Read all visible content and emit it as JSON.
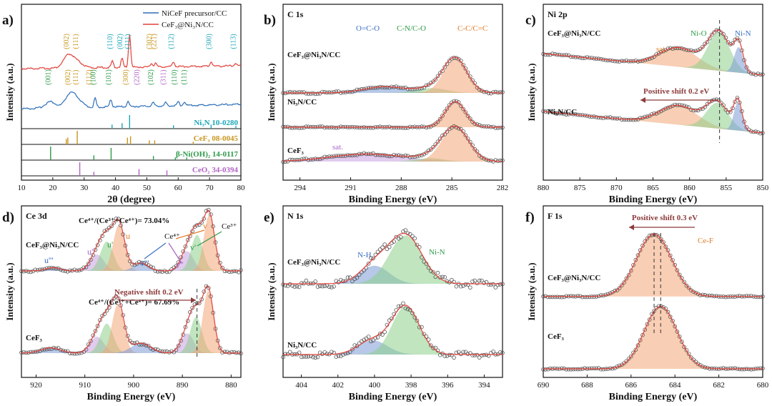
{
  "figure": {
    "colors": {
      "black": "#111111",
      "blue_curve": "#2f6fba",
      "red_curve": "#e0413a"
    }
  },
  "chart_data": [
    {
      "panel": "a)",
      "type": "line",
      "xlabel": "2θ (degree)",
      "ylabel": "Intensity (a.u.)",
      "xlim": [
        10,
        80
      ],
      "xticks": [
        10,
        20,
        30,
        40,
        50,
        60,
        70,
        80
      ],
      "legend": [
        {
          "label": "NiCeF precursor/CC",
          "color": "#2f6fba"
        },
        {
          "label": "CeF₃@Ni₃N/CC",
          "color": "#e0413a"
        }
      ],
      "series": [
        {
          "name": "CeF₃@Ni₃N/CC",
          "color": "#e0413a",
          "peaks": [
            [
              25.0,
              1.0
            ],
            [
              28.0,
              0.4
            ],
            [
              39.0,
              0.5
            ],
            [
              42.1,
              0.7
            ],
            [
              44.5,
              2.6
            ],
            [
              51.5,
              0.3
            ],
            [
              52.8,
              0.3
            ],
            [
              58.5,
              0.4
            ],
            [
              70.5,
              0.35
            ],
            [
              78.3,
              0.2
            ]
          ]
        },
        {
          "name": "NiCeF precursor/CC",
          "color": "#2f6fba",
          "peaks": [
            [
              19.2,
              0.5
            ],
            [
              25.5,
              1.0
            ],
            [
              28.0,
              0.5
            ],
            [
              33.5,
              0.7
            ],
            [
              38.5,
              0.6
            ],
            [
              44.0,
              0.4
            ],
            [
              52.0,
              0.3
            ],
            [
              56.0,
              0.25
            ],
            [
              60.0,
              0.3
            ],
            [
              62.0,
              0.3
            ]
          ]
        }
      ],
      "annotations": [
        {
          "text": "(002)",
          "x": 25.0,
          "color": "#c8961e",
          "row": "red"
        },
        {
          "text": "(111)",
          "x": 28.0,
          "color": "#c8961e",
          "row": "red"
        },
        {
          "text": "(110)",
          "x": 39.0,
          "color": "#1aa6b7",
          "row": "red"
        },
        {
          "text": "(002)",
          "x": 42.1,
          "color": "#1aa6b7",
          "row": "red"
        },
        {
          "text": "(111)",
          "x": 44.5,
          "color": "#1aa6b7",
          "row": "red"
        },
        {
          "text": "(302)",
          "x": 51.5,
          "color": "#c8961e",
          "row": "red"
        },
        {
          "text": "(221)",
          "x": 53.0,
          "color": "#c8961e",
          "row": "red"
        },
        {
          "text": "(112)",
          "x": 58.5,
          "color": "#1aa6b7",
          "row": "red"
        },
        {
          "text": "(300)",
          "x": 70.5,
          "color": "#1aa6b7",
          "row": "red"
        },
        {
          "text": "(113)",
          "x": 78.3,
          "color": "#1aa6b7",
          "row": "red"
        },
        {
          "text": "(001)",
          "x": 19.2,
          "color": "#2e9a49",
          "row": "blue"
        },
        {
          "text": "(002)",
          "x": 25.5,
          "color": "#c8961e",
          "row": "blue"
        },
        {
          "text": "(111)",
          "x": 28.0,
          "color": "#c8961e",
          "row": "blue"
        },
        {
          "text": "(112)",
          "x": 32.2,
          "color": "#c8961e",
          "row": "blue"
        },
        {
          "text": "(100)",
          "x": 33.6,
          "color": "#2e9a49",
          "row": "blue"
        },
        {
          "text": "(101)",
          "x": 38.5,
          "color": "#2e9a49",
          "row": "blue"
        },
        {
          "text": "(300)",
          "x": 44.0,
          "color": "#c8961e",
          "row": "blue"
        },
        {
          "text": "(220)",
          "x": 47.5,
          "color": "#b264c4",
          "row": "blue"
        },
        {
          "text": "(102)",
          "x": 52.0,
          "color": "#2e9a49",
          "row": "blue"
        },
        {
          "text": "(311)",
          "x": 56.0,
          "color": "#b264c4",
          "row": "blue"
        },
        {
          "text": "(110)",
          "x": 59.5,
          "color": "#2e9a49",
          "row": "blue"
        },
        {
          "text": "(111)",
          "x": 62.5,
          "color": "#2e9a49",
          "row": "blue"
        }
      ],
      "references": [
        {
          "label": "Ni₃N 10-0280",
          "color": "#1aa6b7",
          "positions": [
            38.9,
            42.1,
            44.5,
            58.5,
            70.5,
            78.4
          ],
          "heights": [
            0.3,
            0.4,
            1.0,
            0.25,
            0.3,
            0.2
          ]
        },
        {
          "label": "CeF₃ 08-0045",
          "color": "#c8961e",
          "positions": [
            24.3,
            24.8,
            27.8,
            43.8,
            44.8,
            50.8,
            52.5,
            64.8
          ],
          "heights": [
            0.4,
            0.5,
            1.0,
            0.5,
            0.6,
            0.3,
            0.3,
            0.2
          ]
        },
        {
          "label": "β-Ni(OH)₂ 14-0117",
          "color": "#2e9a49",
          "positions": [
            19.3,
            33.1,
            38.6,
            52.1,
            59.1,
            62.7
          ],
          "heights": [
            1.0,
            0.35,
            0.9,
            0.3,
            0.2,
            0.2
          ]
        },
        {
          "label": "CeO₂ 34-0394",
          "color": "#b264c4",
          "positions": [
            28.6,
            33.1,
            47.5,
            56.4
          ],
          "heights": [
            1.0,
            0.3,
            0.5,
            0.4
          ]
        }
      ]
    },
    {
      "panel": "b)",
      "type": "line",
      "title": "C 1s",
      "xlabel": "Binding Energy (eV)",
      "ylabel": "Intensity (a.u.)",
      "xlim": [
        295,
        282
      ],
      "xticks": [
        294,
        291,
        288,
        285,
        282
      ],
      "spectra": [
        {
          "label": "CeF₃@Ni₃N/CC",
          "offset": 2.0,
          "noise": 0.03,
          "components": [
            {
              "name": "O=C-O",
              "center": 289.0,
              "height": 0.18,
              "width": 1.2,
              "color": "#7b9ad6"
            },
            {
              "name": "C-N/C-O",
              "center": 286.2,
              "height": 0.14,
              "width": 0.9,
              "color": "#8ccf8a"
            },
            {
              "name": "C-C/C=C",
              "center": 284.8,
              "height": 1.0,
              "width": 0.7,
              "color": "#f2a677"
            }
          ]
        },
        {
          "label": "Ni₃N/CC",
          "offset": 1.0,
          "noise": 0.02,
          "components": [
            {
              "name": "C-C/C=C",
              "center": 284.8,
              "height": 0.75,
              "width": 0.6,
              "color": "#f2a677"
            }
          ]
        },
        {
          "label": "CeF₃",
          "offset": 0.0,
          "noise": 0.03,
          "components": [
            {
              "name": "sat.",
              "center": 290.0,
              "height": 0.22,
              "width": 2.2,
              "color": "#c9a0e0"
            },
            {
              "name": "C-N/C-O",
              "center": 286.3,
              "height": 0.1,
              "width": 0.8,
              "color": "#8ccf8a"
            },
            {
              "name": "C-C/C=C",
              "center": 284.8,
              "height": 1.0,
              "width": 0.8,
              "color": "#f2a677"
            }
          ]
        }
      ],
      "labels": [
        {
          "text": "O=C-O",
          "color": "#3b6fc4"
        },
        {
          "text": "C-N/C-O",
          "color": "#2e9a49"
        },
        {
          "text": "C-C/C=C",
          "color": "#e07b24"
        },
        {
          "text": "sat.",
          "color": "#a964c4"
        }
      ]
    },
    {
      "panel": "c)",
      "type": "line",
      "title": "Ni 2p",
      "xlabel": "Binding Energy (eV)",
      "ylabel": "Intensity (a.u.)",
      "xlim": [
        880,
        850
      ],
      "xticks": [
        880,
        875,
        870,
        865,
        860,
        855,
        850
      ],
      "spectra": [
        {
          "label": "CeF₃@Ni₃N/CC",
          "offset": 1.35,
          "noise": 0.02,
          "components": [
            {
              "name": "sat.",
              "center": 861.5,
              "height": 0.45,
              "width": 2.6,
              "color": "#f2a677"
            },
            {
              "name": "Ni-O",
              "center": 856.0,
              "height": 0.9,
              "width": 1.5,
              "color": "#8ccf8a"
            },
            {
              "name": "Ni-N",
              "center": 853.3,
              "height": 0.6,
              "width": 0.6,
              "color": "#7b9ad6"
            }
          ]
        },
        {
          "label": "Ni₃N/CC",
          "offset": 0.0,
          "noise": 0.02,
          "components": [
            {
              "name": "sat.",
              "center": 861.5,
              "height": 0.45,
              "width": 2.6,
              "color": "#f2a677"
            },
            {
              "name": "Ni-O",
              "center": 856.2,
              "height": 0.6,
              "width": 1.5,
              "color": "#8ccf8a"
            },
            {
              "name": "Ni-N",
              "center": 853.4,
              "height": 0.65,
              "width": 0.55,
              "color": "#7b9ad6"
            }
          ]
        }
      ],
      "labels": [
        {
          "text": "sat.",
          "color": "#e07b24"
        },
        {
          "text": "Ni-O",
          "color": "#2e9a49"
        },
        {
          "text": "Ni-N",
          "color": "#3b6fc4"
        },
        {
          "text": "Positive shift 0.2 eV",
          "color": "#8c3b3b"
        }
      ],
      "markers": [
        855.9
      ]
    },
    {
      "panel": "d)",
      "type": "line",
      "title": "Ce 3d",
      "xlabel": "Binding Energy (eV)",
      "ylabel": "Intensity (a.u.)",
      "xlim": [
        923,
        878
      ],
      "xticks": [
        920,
        910,
        900,
        890,
        880
      ],
      "spectra": [
        {
          "label": "CeF₃@Ni₃N/CC",
          "offset": 1.25,
          "noise": 0.02,
          "components": [
            {
              "name": "u'''",
              "center": 916.5,
              "height": 0.05,
              "width": 1.5,
              "color": "#7b9ad6"
            },
            {
              "name": "u''",
              "center": 907.5,
              "height": 0.25,
              "width": 1.4,
              "color": "#c9a0e0"
            },
            {
              "name": "u'",
              "center": 905.5,
              "height": 0.45,
              "width": 1.3,
              "color": "#8ccf8a"
            },
            {
              "name": "u",
              "center": 903.0,
              "height": 0.7,
              "width": 1.2,
              "color": "#f2a677"
            },
            {
              "name": "v'''",
              "center": 898.5,
              "height": 0.12,
              "width": 1.5,
              "color": "#7b9ad6"
            },
            {
              "name": "v''",
              "center": 889.0,
              "height": 0.3,
              "width": 1.3,
              "color": "#c9a0e0"
            },
            {
              "name": "v'",
              "center": 887.0,
              "height": 0.55,
              "width": 1.2,
              "color": "#8ccf8a"
            },
            {
              "name": "v",
              "center": 884.5,
              "height": 0.85,
              "width": 1.1,
              "color": "#f2a677"
            }
          ]
        },
        {
          "label": "CeF₃",
          "offset": 0.0,
          "noise": 0.02,
          "components": [
            {
              "name": "u'''",
              "center": 917.0,
              "height": 0.08,
              "width": 2.0,
              "color": "#7b9ad6"
            },
            {
              "name": "u''",
              "center": 907.5,
              "height": 0.25,
              "width": 1.4,
              "color": "#c9a0e0"
            },
            {
              "name": "u'",
              "center": 905.5,
              "height": 0.45,
              "width": 1.3,
              "color": "#8ccf8a"
            },
            {
              "name": "u",
              "center": 903.2,
              "height": 0.75,
              "width": 1.2,
              "color": "#f2a677"
            },
            {
              "name": "v'''",
              "center": 898.5,
              "height": 0.15,
              "width": 2.0,
              "color": "#7b9ad6"
            },
            {
              "name": "v''",
              "center": 889.0,
              "height": 0.3,
              "width": 1.3,
              "color": "#c9a0e0"
            },
            {
              "name": "v'",
              "center": 887.2,
              "height": 0.55,
              "width": 1.2,
              "color": "#8ccf8a"
            },
            {
              "name": "v",
              "center": 884.7,
              "height": 0.95,
              "width": 1.1,
              "color": "#f2a677"
            }
          ]
        }
      ],
      "labels": [
        {
          "text": "Ce⁴⁺/(Ce³⁺+Ce⁴⁺)= 73.04%",
          "color": "#111111"
        },
        {
          "text": "Ce⁴⁺",
          "color": "#111111"
        },
        {
          "text": "Ce³⁺",
          "color": "#111111"
        },
        {
          "text": "u'''",
          "color": "#3b6fc4"
        },
        {
          "text": "u''",
          "color": "#a964c4"
        },
        {
          "text": "u'",
          "color": "#2e9a49"
        },
        {
          "text": "u",
          "color": "#e07b24"
        },
        {
          "text": "v'''",
          "color": "#3b6fc4"
        },
        {
          "text": "v''",
          "color": "#a964c4"
        },
        {
          "text": "v'",
          "color": "#2e9a49"
        },
        {
          "text": "v",
          "color": "#e07b24"
        },
        {
          "text": "Negative shift 0.2 eV",
          "color": "#8c3b3b"
        },
        {
          "text": "Ce⁴⁺/(Ce³⁺+Ce⁴⁺)= 67.69%",
          "color": "#111111"
        }
      ],
      "markers": [
        887.0
      ]
    },
    {
      "panel": "e)",
      "type": "line",
      "title": "N 1s",
      "xlabel": "Binding Energy (eV)",
      "ylabel": "Intensity (a.u.)",
      "xlim": [
        405,
        393
      ],
      "xticks": [
        404,
        402,
        400,
        398,
        396,
        394
      ],
      "spectra": [
        {
          "label": "CeF₃@Ni₃N/CC",
          "offset": 1.1,
          "noise": 0.06,
          "components": [
            {
              "name": "N-H",
              "center": 400.0,
              "height": 0.28,
              "width": 0.8,
              "color": "#7b9ad6"
            },
            {
              "name": "Ni-N",
              "center": 398.3,
              "height": 0.75,
              "width": 0.9,
              "color": "#8ccf8a"
            }
          ]
        },
        {
          "label": "Ni₃N/CC",
          "offset": 0.0,
          "noise": 0.05,
          "components": [
            {
              "name": "N-H",
              "center": 400.1,
              "height": 0.22,
              "width": 0.8,
              "color": "#7b9ad6"
            },
            {
              "name": "Ni-N",
              "center": 398.3,
              "height": 0.75,
              "width": 0.75,
              "color": "#8ccf8a"
            }
          ]
        }
      ],
      "labels": [
        {
          "text": "N-H",
          "color": "#3b6fc4"
        },
        {
          "text": "Ni-N",
          "color": "#2e9a49"
        }
      ]
    },
    {
      "panel": "f)",
      "type": "line",
      "title": "F 1s",
      "xlabel": "Binding Energy (eV)",
      "ylabel": "Intensity (a.u.)",
      "xlim": [
        690,
        680
      ],
      "xticks": [
        690,
        688,
        686,
        684,
        682,
        680
      ],
      "spectra": [
        {
          "label": "CeF₃@Ni₃N/CC",
          "offset": 1.1,
          "noise": 0.01,
          "components": [
            {
              "name": "Ce-F",
              "center": 684.95,
              "height": 0.95,
              "width": 0.8,
              "color": "#f2a677"
            }
          ]
        },
        {
          "label": "CeF₃",
          "offset": 0.0,
          "noise": 0.01,
          "components": [
            {
              "name": "Ce-F",
              "center": 684.65,
              "height": 0.95,
              "width": 0.75,
              "color": "#f2a677"
            }
          ]
        }
      ],
      "labels": [
        {
          "text": "Positive shift 0.3 eV",
          "color": "#8c3b3b"
        },
        {
          "text": "Ce-F",
          "color": "#e07b24"
        }
      ],
      "markers": [
        684.95,
        684.65
      ]
    }
  ]
}
